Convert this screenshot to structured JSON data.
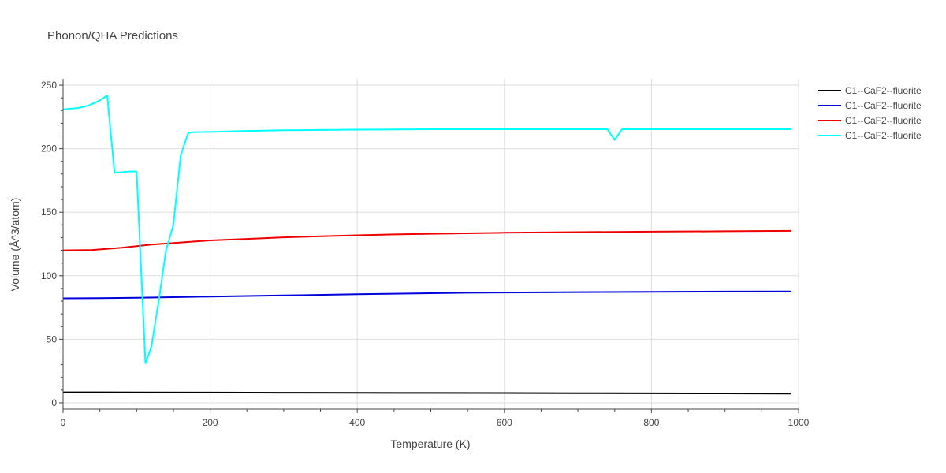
{
  "chart_data": {
    "type": "line",
    "title": "Phonon/QHA Predictions",
    "xlabel": "Temperature (K)",
    "ylabel": "Volume (Å^3/atom)",
    "xlim": [
      0,
      1000
    ],
    "ylim": [
      -5,
      255
    ],
    "xticks": [
      0,
      200,
      400,
      600,
      800,
      1000
    ],
    "yticks": [
      0,
      50,
      100,
      150,
      200,
      250
    ],
    "grid": true,
    "legend_position": "top-right",
    "series": [
      {
        "name": "C1--CaF2--fluorite",
        "color": "#000000",
        "x": [
          0,
          100,
          200,
          300,
          400,
          500,
          600,
          700,
          800,
          900,
          990
        ],
        "y": [
          8.3,
          8.2,
          8.1,
          8.0,
          7.9,
          7.8,
          7.7,
          7.6,
          7.5,
          7.4,
          7.3
        ]
      },
      {
        "name": "C1--CaF2--fluorite",
        "color": "#0000dd",
        "x": [
          0,
          50,
          100,
          150,
          200,
          300,
          400,
          500,
          550,
          600,
          700,
          800,
          900,
          990
        ],
        "y": [
          82.2,
          82.4,
          82.7,
          83.1,
          83.6,
          84.5,
          85.4,
          86.2,
          86.6,
          86.8,
          87.1,
          87.3,
          87.5,
          87.6
        ]
      },
      {
        "name": "C1--CaF2--fluorite",
        "color": "#ee0000",
        "x": [
          0,
          40,
          80,
          120,
          160,
          200,
          250,
          300,
          350,
          400,
          450,
          500,
          600,
          700,
          800,
          900,
          990
        ],
        "y": [
          120.0,
          120.3,
          122.0,
          124.5,
          126.2,
          127.8,
          129.0,
          130.2,
          131.0,
          131.8,
          132.5,
          133.0,
          133.8,
          134.3,
          134.7,
          135.0,
          135.3
        ]
      },
      {
        "name": "C1--CaF2--fluorite",
        "color": "#00ffff",
        "x": [
          0,
          20,
          35,
          50,
          60,
          70,
          90,
          100,
          112,
          120,
          130,
          140,
          150,
          160,
          170,
          175,
          200,
          250,
          300,
          400,
          500,
          600,
          700,
          740,
          750,
          760,
          800,
          900,
          990
        ],
        "y": [
          231,
          232,
          234,
          238,
          242,
          181,
          182,
          182,
          31,
          44,
          80,
          120,
          140,
          195,
          212,
          213,
          213.2,
          214,
          214.5,
          215,
          215.3,
          215.3,
          215.3,
          215.3,
          207,
          215.3,
          215.3,
          215.3,
          215.3
        ]
      }
    ]
  }
}
